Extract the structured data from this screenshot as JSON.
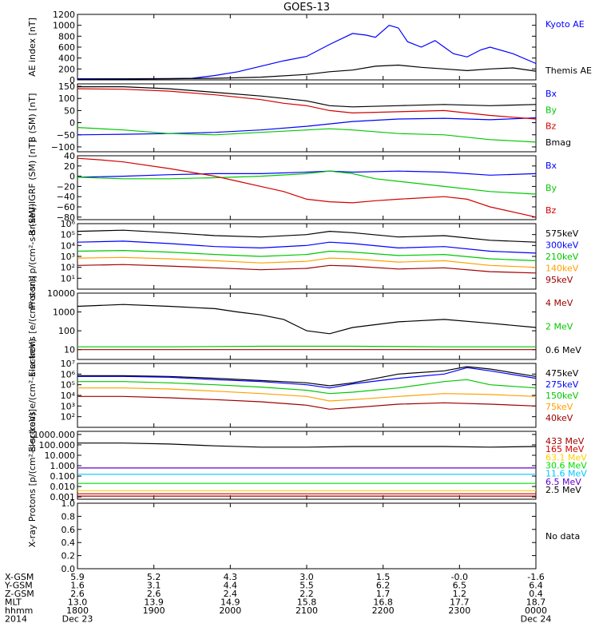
{
  "title": "GOES-13",
  "colors": {
    "black": "#000000",
    "blue": "#0000ff",
    "green": "#00c800",
    "red": "#d20000",
    "darkred": "#a00000",
    "orange": "#ffa000",
    "purple": "#a000a0",
    "cyan": "#00c8ff",
    "gold": "#ffd000",
    "lime": "#00e000",
    "indigo": "#6400c8"
  },
  "chart_data": [
    {
      "type": "line",
      "ylabel": "AE index [nT]",
      "ylim": [
        0,
        1200
      ],
      "yticks": [
        0,
        200,
        400,
        600,
        800,
        1000,
        1200
      ],
      "yticklabels": [
        "0",
        "200",
        "400",
        "600",
        "800",
        "1000",
        "1200"
      ],
      "series": [
        {
          "name": "Kyoto AE",
          "color": "blue",
          "x": [
            0,
            0.1,
            0.2,
            0.25,
            0.3,
            0.35,
            0.4,
            0.45,
            0.5,
            0.55,
            0.6,
            0.63,
            0.65,
            0.68,
            0.7,
            0.72,
            0.75,
            0.78,
            0.8,
            0.82,
            0.85,
            0.88,
            0.9,
            0.95,
            1.0
          ],
          "y": [
            20,
            20,
            25,
            30,
            80,
            150,
            250,
            350,
            430,
            650,
            850,
            820,
            780,
            1000,
            950,
            700,
            600,
            720,
            600,
            480,
            420,
            550,
            600,
            480,
            300
          ]
        },
        {
          "name": "Themis AE",
          "color": "black",
          "x": [
            0,
            0.1,
            0.2,
            0.3,
            0.4,
            0.5,
            0.55,
            0.6,
            0.65,
            0.7,
            0.75,
            0.8,
            0.85,
            0.9,
            0.95,
            1.0
          ],
          "y": [
            10,
            15,
            20,
            30,
            50,
            100,
            150,
            180,
            250,
            270,
            230,
            200,
            170,
            200,
            220,
            160
          ]
        }
      ]
    },
    {
      "type": "line",
      "ylabel": "B (SM) [nT]",
      "ylim": [
        -120,
        160
      ],
      "yticks": [
        -100,
        -50,
        0,
        50,
        100,
        150
      ],
      "yticklabels": [
        "−100",
        "−50",
        "0",
        "50",
        "100",
        "150"
      ],
      "series": [
        {
          "name": "Bx",
          "color": "blue",
          "x": [
            0,
            0.1,
            0.2,
            0.3,
            0.4,
            0.5,
            0.55,
            0.6,
            0.7,
            0.8,
            0.9,
            1.0
          ],
          "y": [
            -50,
            -48,
            -45,
            -40,
            -30,
            -15,
            -5,
            5,
            15,
            18,
            12,
            20
          ]
        },
        {
          "name": "By",
          "color": "green",
          "x": [
            0,
            0.1,
            0.2,
            0.3,
            0.4,
            0.5,
            0.55,
            0.6,
            0.7,
            0.8,
            0.9,
            1.0
          ],
          "y": [
            -20,
            -30,
            -45,
            -50,
            -40,
            -30,
            -25,
            -30,
            -45,
            -50,
            -70,
            -80
          ]
        },
        {
          "name": "Bz",
          "color": "red",
          "x": [
            0,
            0.1,
            0.2,
            0.3,
            0.4,
            0.45,
            0.5,
            0.55,
            0.6,
            0.7,
            0.8,
            0.9,
            1.0
          ],
          "y": [
            140,
            138,
            130,
            115,
            95,
            80,
            70,
            50,
            40,
            45,
            50,
            30,
            15
          ]
        },
        {
          "name": "Bmag",
          "color": "black",
          "x": [
            0,
            0.1,
            0.2,
            0.3,
            0.4,
            0.45,
            0.5,
            0.55,
            0.6,
            0.7,
            0.8,
            0.9,
            1.0
          ],
          "y": [
            148,
            148,
            140,
            125,
            110,
            100,
            90,
            70,
            65,
            70,
            75,
            70,
            75
          ]
        }
      ]
    },
    {
      "type": "line",
      "ylabel": "B (SM)-IGRF (SM) [nT]",
      "ylim": [
        -85,
        40
      ],
      "yticks": [
        -80,
        -60,
        -40,
        -20,
        0,
        20,
        40
      ],
      "yticklabels": [
        "−80",
        "−60",
        "−40",
        "−20",
        "0",
        "20",
        "40"
      ],
      "series": [
        {
          "name": "Bx",
          "color": "blue",
          "x": [
            0,
            0.1,
            0.2,
            0.3,
            0.4,
            0.5,
            0.55,
            0.6,
            0.7,
            0.8,
            0.9,
            1.0
          ],
          "y": [
            -2,
            0,
            3,
            5,
            5,
            8,
            10,
            8,
            10,
            8,
            2,
            5
          ]
        },
        {
          "name": "By",
          "color": "green",
          "x": [
            0,
            0.1,
            0.2,
            0.3,
            0.4,
            0.5,
            0.55,
            0.6,
            0.65,
            0.7,
            0.8,
            0.9,
            1.0
          ],
          "y": [
            -2,
            -5,
            -5,
            -3,
            0,
            5,
            10,
            5,
            -5,
            -10,
            -20,
            -30,
            -35
          ]
        },
        {
          "name": "Bz",
          "color": "red",
          "x": [
            0,
            0.05,
            0.1,
            0.2,
            0.3,
            0.35,
            0.4,
            0.45,
            0.5,
            0.55,
            0.6,
            0.65,
            0.7,
            0.8,
            0.85,
            0.9,
            1.0
          ],
          "y": [
            35,
            32,
            28,
            15,
            0,
            -10,
            -20,
            -30,
            -45,
            -50,
            -52,
            -48,
            -45,
            -40,
            -45,
            -60,
            -80
          ]
        }
      ]
    },
    {
      "type": "line",
      "ylabel": "Protons p/(cm²-s-sr-keV)",
      "yscale": "log",
      "ylim": [
        1,
        1000000
      ],
      "yticks": [
        10,
        100,
        1000,
        10000,
        100000,
        1000000
      ],
      "yticklabels": [
        "10¹",
        "10²",
        "10³",
        "10⁴",
        "10⁵",
        "10⁶"
      ],
      "series": [
        {
          "name": "575keV",
          "color": "black",
          "x": [
            0,
            0.1,
            0.2,
            0.3,
            0.4,
            0.5,
            0.55,
            0.6,
            0.7,
            0.8,
            0.9,
            1.0
          ],
          "y": [
            200000,
            250000,
            150000,
            80000,
            60000,
            100000,
            200000,
            150000,
            60000,
            80000,
            30000,
            20000
          ]
        },
        {
          "name": "300keV",
          "color": "blue",
          "x": [
            0,
            0.1,
            0.2,
            0.3,
            0.4,
            0.5,
            0.55,
            0.6,
            0.7,
            0.8,
            0.9,
            1.0
          ],
          "y": [
            20000,
            25000,
            15000,
            8000,
            6000,
            10000,
            20000,
            15000,
            6000,
            8000,
            3000,
            2000
          ]
        },
        {
          "name": "210keV",
          "color": "green",
          "x": [
            0,
            0.1,
            0.2,
            0.3,
            0.4,
            0.5,
            0.55,
            0.6,
            0.7,
            0.8,
            0.9,
            1.0
          ],
          "y": [
            3000,
            3500,
            2500,
            1500,
            1000,
            1500,
            3000,
            2500,
            1200,
            1500,
            600,
            400
          ]
        },
        {
          "name": "140keV",
          "color": "orange",
          "x": [
            0,
            0.1,
            0.2,
            0.3,
            0.4,
            0.5,
            0.55,
            0.6,
            0.7,
            0.8,
            0.9,
            1.0
          ],
          "y": [
            700,
            800,
            600,
            400,
            250,
            350,
            700,
            600,
            300,
            400,
            150,
            100
          ]
        },
        {
          "name": "95keV",
          "color": "darkred",
          "x": [
            0,
            0.1,
            0.2,
            0.3,
            0.4,
            0.5,
            0.55,
            0.6,
            0.7,
            0.8,
            0.9,
            1.0
          ],
          "y": [
            150,
            180,
            130,
            90,
            60,
            80,
            150,
            130,
            70,
            90,
            40,
            30
          ]
        }
      ]
    },
    {
      "type": "line",
      "ylabel": "Electrons [e/(cm²-s-sr)]",
      "yscale": "log",
      "ylim": [
        3,
        10000
      ],
      "yticks": [
        10,
        100,
        1000,
        10000
      ],
      "yticklabels": [
        "10",
        "100",
        "1000",
        "10000"
      ],
      "series": [
        {
          "name": "4 MeV",
          "color": "darkred",
          "x": [
            0,
            0.2,
            0.4,
            0.6,
            0.8,
            1.0
          ],
          "y": [
            10,
            10,
            10,
            10,
            10,
            10
          ]
        },
        {
          "name": "2 MeV",
          "color": "green",
          "x": [
            0,
            0.2,
            0.4,
            0.6,
            0.8,
            1.0
          ],
          "y": [
            14,
            14,
            15,
            15,
            14,
            14
          ]
        },
        {
          "name": "0.6 MeV",
          "color": "black",
          "x": [
            0,
            0.1,
            0.2,
            0.3,
            0.35,
            0.4,
            0.45,
            0.5,
            0.55,
            0.6,
            0.7,
            0.8,
            0.9,
            1.0
          ],
          "y": [
            2000,
            2500,
            2000,
            1500,
            1000,
            700,
            400,
            100,
            70,
            150,
            300,
            400,
            250,
            150
          ]
        }
      ]
    },
    {
      "type": "line",
      "ylabel": "Electrons e/(cm²-s-sr-keV)",
      "yscale": "log",
      "ylim": [
        10,
        10000000
      ],
      "yticks": [
        100,
        1000,
        10000,
        100000,
        1000000,
        10000000
      ],
      "yticklabels": [
        "10²",
        "10³",
        "10⁴",
        "10⁵",
        "10⁶",
        "10⁷"
      ],
      "series": [
        {
          "name": "475keV",
          "color": "black",
          "x": [
            0,
            0.1,
            0.2,
            0.3,
            0.4,
            0.5,
            0.55,
            0.6,
            0.7,
            0.8,
            0.85,
            0.9,
            1.0
          ],
          "y": [
            700000,
            700000,
            600000,
            400000,
            250000,
            150000,
            80000,
            150000,
            1000000,
            2000000,
            5000000,
            3000000,
            600000
          ]
        },
        {
          "name": "275keV",
          "color": "blue",
          "x": [
            0,
            0.1,
            0.2,
            0.3,
            0.4,
            0.5,
            0.55,
            0.6,
            0.7,
            0.8,
            0.85,
            0.9,
            1.0
          ],
          "y": [
            600000,
            600000,
            500000,
            300000,
            200000,
            100000,
            50000,
            120000,
            400000,
            1000000,
            4000000,
            2000000,
            400000
          ]
        },
        {
          "name": "150keV",
          "color": "green",
          "x": [
            0,
            0.1,
            0.2,
            0.3,
            0.4,
            0.5,
            0.55,
            0.6,
            0.7,
            0.8,
            0.85,
            0.9,
            1.0
          ],
          "y": [
            200000,
            200000,
            150000,
            100000,
            60000,
            30000,
            15000,
            20000,
            50000,
            200000,
            300000,
            100000,
            50000
          ]
        },
        {
          "name": "75keV",
          "color": "orange",
          "x": [
            0,
            0.1,
            0.2,
            0.3,
            0.4,
            0.5,
            0.55,
            0.6,
            0.7,
            0.8,
            0.9,
            1.0
          ],
          "y": [
            50000,
            50000,
            40000,
            25000,
            15000,
            8000,
            3000,
            4000,
            8000,
            15000,
            12000,
            8000
          ]
        },
        {
          "name": "40keV",
          "color": "darkred",
          "x": [
            0,
            0.1,
            0.2,
            0.3,
            0.4,
            0.5,
            0.55,
            0.6,
            0.7,
            0.8,
            0.9,
            1.0
          ],
          "y": [
            8000,
            8000,
            6000,
            4000,
            2500,
            1200,
            500,
            700,
            1500,
            2000,
            1500,
            1000
          ]
        }
      ]
    },
    {
      "type": "line",
      "ylabel": "Protons [p/(cm²-s-sr-keV)]",
      "yscale": "log",
      "ylim": [
        0.0006,
        2000
      ],
      "yticks": [
        0.001,
        0.01,
        0.1,
        1,
        10,
        100,
        1000
      ],
      "yticklabels": [
        "0.001",
        "0.010",
        "0.100",
        "1.000",
        "10.000",
        "100.000",
        "1000.000"
      ],
      "series": [
        {
          "name": "433 MeV",
          "color": "darkred",
          "x": [
            0,
            0.5,
            1.0
          ],
          "y": [
            0.0012,
            0.0012,
            0.0012
          ]
        },
        {
          "name": "165 MeV",
          "color": "red",
          "x": [
            0,
            0.5,
            1.0
          ],
          "y": [
            0.002,
            0.002,
            0.002
          ]
        },
        {
          "name": "63.1 MeV",
          "color": "gold",
          "x": [
            0,
            0.5,
            1.0
          ],
          "y": [
            0.004,
            0.004,
            0.004
          ]
        },
        {
          "name": "30.6 MeV",
          "color": "lime",
          "x": [
            0,
            0.5,
            1.0
          ],
          "y": [
            0.02,
            0.02,
            0.02
          ]
        },
        {
          "name": "11.6 MeV",
          "color": "cyan",
          "x": [
            0,
            0.5,
            1.0
          ],
          "y": [
            0.15,
            0.15,
            0.15
          ]
        },
        {
          "name": "6.5 MeV",
          "color": "indigo",
          "x": [
            0,
            0.5,
            1.0
          ],
          "y": [
            0.6,
            0.6,
            0.6
          ]
        },
        {
          "name": "2.5 MeV",
          "color": "black",
          "x": [
            0,
            0.1,
            0.2,
            0.3,
            0.4,
            0.5,
            0.6,
            0.7,
            0.8,
            0.9,
            1.0
          ],
          "y": [
            150,
            150,
            120,
            80,
            60,
            60,
            70,
            70,
            70,
            60,
            70
          ]
        }
      ]
    },
    {
      "type": "line",
      "ylabel": "X-ray",
      "ylim": [
        0,
        1
      ],
      "yticks": [
        0,
        0.2,
        0.4,
        0.6,
        0.8,
        1.0
      ],
      "yticklabels": [
        "0.0",
        "0.2",
        "0.4",
        "0.6",
        "0.8",
        "1.0"
      ],
      "series": [],
      "note": "No data"
    }
  ],
  "xaxis": {
    "tick_x": [
      0,
      0.1667,
      0.3333,
      0.5,
      0.6667,
      0.8333,
      1.0
    ],
    "rows": [
      {
        "label": "X-GSM",
        "values": [
          "5.9",
          "5.2",
          "4.3",
          "3.0",
          "1.5",
          "-0.0",
          "-1.6"
        ]
      },
      {
        "label": "Y-GSM",
        "values": [
          "1.6",
          "3.1",
          "4.4",
          "5.5",
          "6.2",
          "6.5",
          "6.4"
        ]
      },
      {
        "label": "Z-GSM",
        "values": [
          "2.6",
          "2.6",
          "2.4",
          "2.2",
          "1.7",
          "1.2",
          "0.4"
        ]
      },
      {
        "label": "MLT",
        "values": [
          "13.0",
          "13.9",
          "14.9",
          "15.8",
          "16.8",
          "17.7",
          "18.7"
        ]
      },
      {
        "label": "hhmm",
        "values": [
          "1800",
          "1900",
          "2000",
          "2100",
          "2200",
          "2300",
          "0000"
        ]
      },
      {
        "label": "2014",
        "values": [
          "Dec 23",
          "",
          "",
          "",
          "",
          "",
          "Dec 24"
        ]
      }
    ]
  }
}
